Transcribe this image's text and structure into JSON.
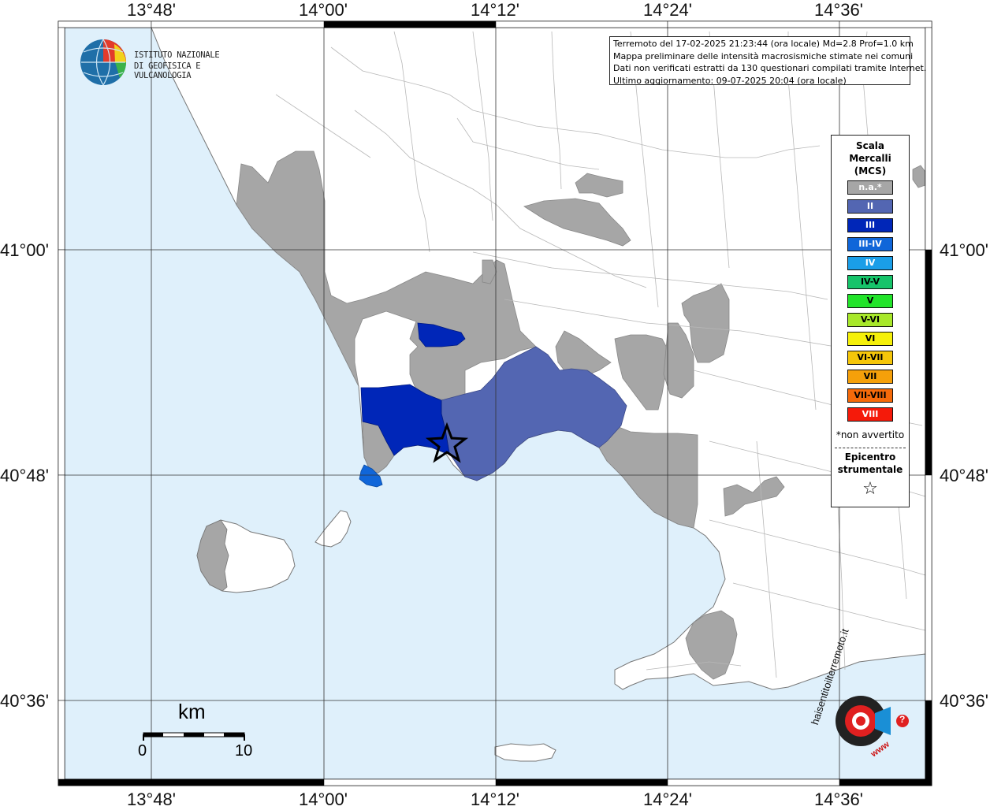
{
  "ticks": {
    "lon": [
      "13°48'",
      "14°00'",
      "14°12'",
      "14°24'",
      "14°36'"
    ],
    "lat": [
      "41°00'",
      "40°48'",
      "40°36'"
    ]
  },
  "info_box": {
    "line1": "Terremoto del 17-02-2025 21:23:44 (ora locale) Md=2.8 Prof=1.0 km",
    "line2": "Mappa preliminare delle intensità macrosismiche stimate nei comuni",
    "line3": "Dati non verificati estratti da 130 questionari compilati tramite Internet.",
    "line4": "Ultimo aggiornamento: 09-07-2025 20:04 (ora locale)"
  },
  "ingv_logo": {
    "line1": "ISTITUTO NAZIONALE",
    "line2": "DI GEOFISICA E VULCANOLOGIA"
  },
  "legend": {
    "title1": "Scala",
    "title2": "Mercalli",
    "title3": "(MCS)",
    "classes": [
      {
        "label": "n.a.*",
        "color": "#a6a6a6",
        "text": "#ffffff"
      },
      {
        "label": "II",
        "color": "#5366b2",
        "text": "#ffffff"
      },
      {
        "label": "III",
        "color": "#0026b8",
        "text": "#ffffff"
      },
      {
        "label": "III-IV",
        "color": "#1066d9",
        "text": "#ffffff"
      },
      {
        "label": "IV",
        "color": "#1a9ee8",
        "text": "#ffffff"
      },
      {
        "label": "IV-V",
        "color": "#16c46a",
        "text": "#000000"
      },
      {
        "label": "V",
        "color": "#22e42a",
        "text": "#000000"
      },
      {
        "label": "V-VI",
        "color": "#a8e82a",
        "text": "#000000"
      },
      {
        "label": "VI",
        "color": "#f5f00a",
        "text": "#000000"
      },
      {
        "label": "VI-VII",
        "color": "#f5c60a",
        "text": "#000000"
      },
      {
        "label": "VII",
        "color": "#f5a00a",
        "text": "#000000"
      },
      {
        "label": "VII-VIII",
        "color": "#f56a0a",
        "text": "#000000"
      },
      {
        "label": "VIII",
        "color": "#f51a0a",
        "text": "#ffffff"
      }
    ],
    "not_felt_note": "*non avvertito",
    "epicenter_title1": "Epicentro",
    "epicenter_title2": "strumentale",
    "epicenter_symbol": "☆"
  },
  "scale_bar": {
    "unit": "km",
    "min_label": "0",
    "max_label": "10"
  },
  "hsl_logo": {
    "text": "haisentitoilterremoto.it",
    "url": "www",
    "question": "?"
  },
  "colors": {
    "sea": "#dff0fb",
    "land": "#ffffff",
    "not_felt": "#a6a6a6",
    "intensity_II": "#5366b2",
    "intensity_III": "#0026b8",
    "intensity_III_IV": "#1066d9"
  }
}
